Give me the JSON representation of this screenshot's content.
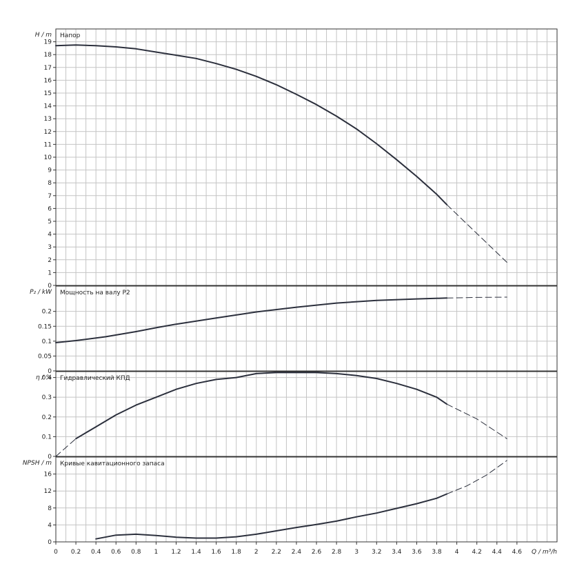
{
  "chart_data": [
    {
      "type": "line",
      "title": "Напор",
      "ylabel": "H / m",
      "xlim": [
        0,
        5
      ],
      "ylim": [
        0,
        20
      ],
      "yticks": [
        0,
        1,
        2,
        3,
        4,
        5,
        6,
        7,
        8,
        9,
        10,
        11,
        12,
        13,
        14,
        15,
        16,
        17,
        18,
        19
      ],
      "grid": true,
      "series": [
        {
          "style": "solid",
          "x": [
            0,
            0.2,
            0.4,
            0.6,
            0.8,
            1.0,
            1.2,
            1.4,
            1.6,
            1.8,
            2.0,
            2.2,
            2.4,
            2.6,
            2.8,
            3.0,
            3.2,
            3.4,
            3.6,
            3.8,
            3.9
          ],
          "y": [
            18.7,
            18.75,
            18.7,
            18.6,
            18.45,
            18.2,
            17.95,
            17.7,
            17.3,
            16.85,
            16.3,
            15.65,
            14.9,
            14.1,
            13.2,
            12.2,
            11.05,
            9.8,
            8.5,
            7.1,
            6.3
          ]
        },
        {
          "style": "dashed",
          "x": [
            3.9,
            4.1,
            4.3,
            4.5
          ],
          "y": [
            6.3,
            4.8,
            3.3,
            1.8
          ]
        }
      ]
    },
    {
      "type": "line",
      "title": "Мощность на валу P2",
      "ylabel": "P₂ / kW",
      "xlim": [
        0,
        5
      ],
      "ylim": [
        0,
        0.285
      ],
      "yticks": [
        0,
        0.05,
        0.1,
        0.15,
        0.2
      ],
      "grid": true,
      "series": [
        {
          "style": "solid",
          "x": [
            0,
            0.2,
            0.5,
            0.8,
            1.0,
            1.2,
            1.6,
            2.0,
            2.4,
            2.8,
            3.2,
            3.6,
            3.9
          ],
          "y": [
            0.095,
            0.102,
            0.115,
            0.132,
            0.145,
            0.157,
            0.178,
            0.198,
            0.214,
            0.228,
            0.237,
            0.242,
            0.245
          ]
        },
        {
          "style": "dashed",
          "x": [
            3.9,
            4.2,
            4.5
          ],
          "y": [
            0.245,
            0.247,
            0.248
          ]
        }
      ]
    },
    {
      "type": "line",
      "title": "Гидравлический КПД",
      "ylabel": "η / %",
      "xlim": [
        0,
        5
      ],
      "ylim": [
        0,
        0.43
      ],
      "yticks": [
        0,
        0.1,
        0.2,
        0.3,
        0.4
      ],
      "grid": true,
      "series": [
        {
          "style": "dashed",
          "x": [
            0,
            0.2
          ],
          "y": [
            0,
            0.09
          ]
        },
        {
          "style": "solid",
          "x": [
            0.2,
            0.4,
            0.6,
            0.8,
            1.0,
            1.2,
            1.4,
            1.6,
            1.8,
            2.0,
            2.2,
            2.4,
            2.6,
            2.8,
            3.0,
            3.2,
            3.4,
            3.6,
            3.8,
            3.9
          ],
          "y": [
            0.09,
            0.15,
            0.21,
            0.26,
            0.3,
            0.34,
            0.37,
            0.39,
            0.4,
            0.42,
            0.425,
            0.425,
            0.425,
            0.42,
            0.41,
            0.395,
            0.37,
            0.34,
            0.3,
            0.265
          ]
        },
        {
          "style": "dashed",
          "x": [
            3.9,
            4.2,
            4.5
          ],
          "y": [
            0.265,
            0.19,
            0.09
          ]
        }
      ]
    },
    {
      "type": "line",
      "title": "Кривые кавитационного запаса",
      "ylabel": "NPSH / m",
      "xlabel": "Q / m³/h",
      "xlim": [
        0,
        5
      ],
      "ylim": [
        0,
        20
      ],
      "xticks": [
        0,
        0.2,
        0.4,
        0.6,
        0.8,
        1,
        1.2,
        1.4,
        1.6,
        1.8,
        2,
        2.2,
        2.4,
        2.6,
        2.8,
        3,
        3.2,
        3.4,
        3.6,
        3.8,
        4,
        4.2,
        4.4,
        4.6
      ],
      "yticks": [
        0,
        4,
        8,
        12,
        16
      ],
      "grid": true,
      "series": [
        {
          "style": "solid",
          "x": [
            0.4,
            0.6,
            0.8,
            1.0,
            1.2,
            1.4,
            1.6,
            1.8,
            2.0,
            2.2,
            2.4,
            2.6,
            2.8,
            3.0,
            3.2,
            3.4,
            3.6,
            3.8,
            3.9
          ],
          "y": [
            0.7,
            1.6,
            1.8,
            1.5,
            1.1,
            0.9,
            0.9,
            1.2,
            1.8,
            2.6,
            3.4,
            4.1,
            4.9,
            5.9,
            6.8,
            7.9,
            9.0,
            10.3,
            11.3
          ]
        },
        {
          "style": "dashed",
          "x": [
            3.9,
            4.1,
            4.3,
            4.5
          ],
          "y": [
            11.3,
            13.2,
            15.8,
            19.2
          ]
        }
      ]
    }
  ]
}
